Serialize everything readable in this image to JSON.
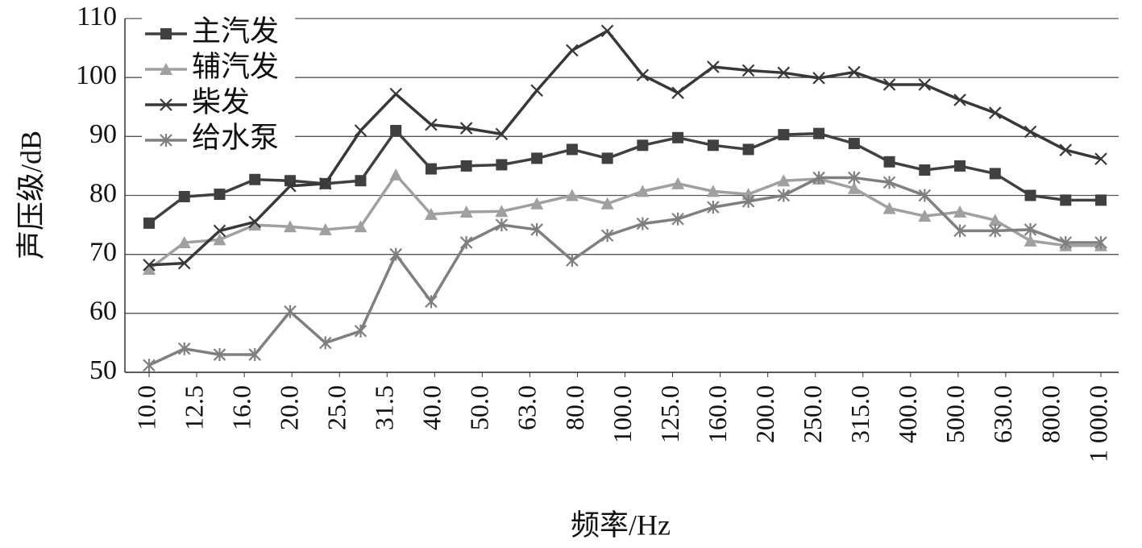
{
  "chart_data": {
    "type": "line",
    "x_label": "频率/Hz",
    "y_label": "声压级/dB",
    "x": [
      0,
      1,
      2,
      3,
      4,
      5,
      6,
      7,
      8,
      9,
      10,
      11,
      12,
      13,
      14,
      15,
      16,
      17,
      18,
      19,
      20,
      21,
      22,
      23,
      24,
      25,
      26,
      27
    ],
    "xlim": [
      0,
      27
    ],
    "xticks": [
      {
        "value": 0,
        "label": "10.0"
      },
      {
        "value": 1.35,
        "label": "12.5"
      },
      {
        "value": 2.7,
        "label": "16.0"
      },
      {
        "value": 4.05,
        "label": "20.0"
      },
      {
        "value": 5.4,
        "label": "25.0"
      },
      {
        "value": 6.75,
        "label": "31.5"
      },
      {
        "value": 8.1,
        "label": "40.0"
      },
      {
        "value": 9.45,
        "label": "50.0"
      },
      {
        "value": 10.8,
        "label": "63.0"
      },
      {
        "value": 12.15,
        "label": "80.0"
      },
      {
        "value": 13.5,
        "label": "100.0"
      },
      {
        "value": 14.85,
        "label": "125.0"
      },
      {
        "value": 16.2,
        "label": "160.0"
      },
      {
        "value": 17.55,
        "label": "200.0"
      },
      {
        "value": 18.9,
        "label": "250.0"
      },
      {
        "value": 20.25,
        "label": "315.0"
      },
      {
        "value": 21.6,
        "label": "400.0"
      },
      {
        "value": 22.95,
        "label": "500.0"
      },
      {
        "value": 24.3,
        "label": "630.0"
      },
      {
        "value": 25.65,
        "label": "800.0"
      },
      {
        "value": 27,
        "label": "1 000.0"
      }
    ],
    "ylim": [
      50,
      110
    ],
    "yticks": [
      50,
      60,
      70,
      80,
      90,
      100,
      110
    ],
    "grid": true,
    "legend": "top-left",
    "series": [
      {
        "name": "主汽发",
        "color": "#404040",
        "marker": "square",
        "values": [
          75.3,
          79.8,
          80.2,
          82.7,
          82.5,
          82,
          82.5,
          91,
          84.5,
          85,
          85.2,
          86.3,
          87.8,
          86.3,
          88.5,
          89.8,
          88.5,
          87.8,
          90.3,
          90.5,
          88.8,
          85.7,
          84.3,
          85,
          83.7,
          80,
          79.2,
          79.2
        ]
      },
      {
        "name": "辅汽发",
        "color": "#a0a0a0",
        "marker": "triangle",
        "values": [
          67.5,
          72,
          72.5,
          75,
          74.7,
          74.2,
          74.7,
          83.5,
          76.8,
          77.2,
          77.3,
          78.6,
          80,
          78.6,
          80.7,
          82,
          80.7,
          80.2,
          82.5,
          82.8,
          81.2,
          77.8,
          76.5,
          77.2,
          75.8,
          72.3,
          71.5,
          71.5
        ]
      },
      {
        "name": "柴发",
        "color": "#383838",
        "marker": "x",
        "values": [
          68.2,
          68.5,
          74,
          75.5,
          81.6,
          82,
          91,
          97.2,
          92,
          91.4,
          90.4,
          97.8,
          104.6,
          107.9,
          100.4,
          97.4,
          101.8,
          101.2,
          100.8,
          99.9,
          100.9,
          98.8,
          98.8,
          96.2,
          94,
          90.8,
          87.7,
          86.2
        ]
      },
      {
        "name": "给水泵",
        "color": "#7f7f7f",
        "marker": "star",
        "values": [
          51.2,
          54,
          53,
          53,
          60.3,
          55,
          57,
          70,
          62,
          72,
          75,
          74.2,
          69,
          73.2,
          75.2,
          76,
          78,
          79,
          80,
          83,
          83,
          82.2,
          80,
          74,
          74,
          74.2,
          72,
          72
        ]
      }
    ]
  }
}
